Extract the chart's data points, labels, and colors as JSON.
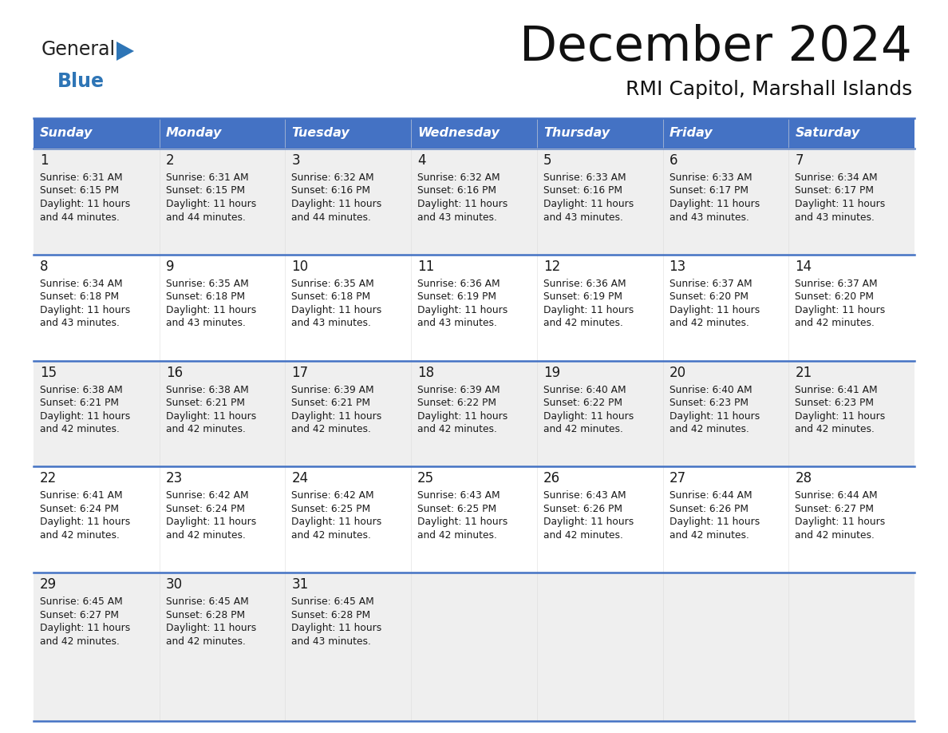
{
  "title": "December 2024",
  "subtitle": "RMI Capitol, Marshall Islands",
  "header_bg": "#4472C4",
  "header_fg": "#FFFFFF",
  "row_bg_odd": "#EFEFEF",
  "row_bg_even": "#FFFFFF",
  "divider_color": "#4472C4",
  "text_color": "#1a1a1a",
  "days_of_week": [
    "Sunday",
    "Monday",
    "Tuesday",
    "Wednesday",
    "Thursday",
    "Friday",
    "Saturday"
  ],
  "calendar_data": [
    [
      {
        "day": "1",
        "sunrise": "6:31 AM",
        "sunset": "6:15 PM",
        "dl1": "Daylight: 11 hours",
        "dl2": "and 44 minutes."
      },
      {
        "day": "2",
        "sunrise": "6:31 AM",
        "sunset": "6:15 PM",
        "dl1": "Daylight: 11 hours",
        "dl2": "and 44 minutes."
      },
      {
        "day": "3",
        "sunrise": "6:32 AM",
        "sunset": "6:16 PM",
        "dl1": "Daylight: 11 hours",
        "dl2": "and 44 minutes."
      },
      {
        "day": "4",
        "sunrise": "6:32 AM",
        "sunset": "6:16 PM",
        "dl1": "Daylight: 11 hours",
        "dl2": "and 43 minutes."
      },
      {
        "day": "5",
        "sunrise": "6:33 AM",
        "sunset": "6:16 PM",
        "dl1": "Daylight: 11 hours",
        "dl2": "and 43 minutes."
      },
      {
        "day": "6",
        "sunrise": "6:33 AM",
        "sunset": "6:17 PM",
        "dl1": "Daylight: 11 hours",
        "dl2": "and 43 minutes."
      },
      {
        "day": "7",
        "sunrise": "6:34 AM",
        "sunset": "6:17 PM",
        "dl1": "Daylight: 11 hours",
        "dl2": "and 43 minutes."
      }
    ],
    [
      {
        "day": "8",
        "sunrise": "6:34 AM",
        "sunset": "6:18 PM",
        "dl1": "Daylight: 11 hours",
        "dl2": "and 43 minutes."
      },
      {
        "day": "9",
        "sunrise": "6:35 AM",
        "sunset": "6:18 PM",
        "dl1": "Daylight: 11 hours",
        "dl2": "and 43 minutes."
      },
      {
        "day": "10",
        "sunrise": "6:35 AM",
        "sunset": "6:18 PM",
        "dl1": "Daylight: 11 hours",
        "dl2": "and 43 minutes."
      },
      {
        "day": "11",
        "sunrise": "6:36 AM",
        "sunset": "6:19 PM",
        "dl1": "Daylight: 11 hours",
        "dl2": "and 43 minutes."
      },
      {
        "day": "12",
        "sunrise": "6:36 AM",
        "sunset": "6:19 PM",
        "dl1": "Daylight: 11 hours",
        "dl2": "and 42 minutes."
      },
      {
        "day": "13",
        "sunrise": "6:37 AM",
        "sunset": "6:20 PM",
        "dl1": "Daylight: 11 hours",
        "dl2": "and 42 minutes."
      },
      {
        "day": "14",
        "sunrise": "6:37 AM",
        "sunset": "6:20 PM",
        "dl1": "Daylight: 11 hours",
        "dl2": "and 42 minutes."
      }
    ],
    [
      {
        "day": "15",
        "sunrise": "6:38 AM",
        "sunset": "6:21 PM",
        "dl1": "Daylight: 11 hours",
        "dl2": "and 42 minutes."
      },
      {
        "day": "16",
        "sunrise": "6:38 AM",
        "sunset": "6:21 PM",
        "dl1": "Daylight: 11 hours",
        "dl2": "and 42 minutes."
      },
      {
        "day": "17",
        "sunrise": "6:39 AM",
        "sunset": "6:21 PM",
        "dl1": "Daylight: 11 hours",
        "dl2": "and 42 minutes."
      },
      {
        "day": "18",
        "sunrise": "6:39 AM",
        "sunset": "6:22 PM",
        "dl1": "Daylight: 11 hours",
        "dl2": "and 42 minutes."
      },
      {
        "day": "19",
        "sunrise": "6:40 AM",
        "sunset": "6:22 PM",
        "dl1": "Daylight: 11 hours",
        "dl2": "and 42 minutes."
      },
      {
        "day": "20",
        "sunrise": "6:40 AM",
        "sunset": "6:23 PM",
        "dl1": "Daylight: 11 hours",
        "dl2": "and 42 minutes."
      },
      {
        "day": "21",
        "sunrise": "6:41 AM",
        "sunset": "6:23 PM",
        "dl1": "Daylight: 11 hours",
        "dl2": "and 42 minutes."
      }
    ],
    [
      {
        "day": "22",
        "sunrise": "6:41 AM",
        "sunset": "6:24 PM",
        "dl1": "Daylight: 11 hours",
        "dl2": "and 42 minutes."
      },
      {
        "day": "23",
        "sunrise": "6:42 AM",
        "sunset": "6:24 PM",
        "dl1": "Daylight: 11 hours",
        "dl2": "and 42 minutes."
      },
      {
        "day": "24",
        "sunrise": "6:42 AM",
        "sunset": "6:25 PM",
        "dl1": "Daylight: 11 hours",
        "dl2": "and 42 minutes."
      },
      {
        "day": "25",
        "sunrise": "6:43 AM",
        "sunset": "6:25 PM",
        "dl1": "Daylight: 11 hours",
        "dl2": "and 42 minutes."
      },
      {
        "day": "26",
        "sunrise": "6:43 AM",
        "sunset": "6:26 PM",
        "dl1": "Daylight: 11 hours",
        "dl2": "and 42 minutes."
      },
      {
        "day": "27",
        "sunrise": "6:44 AM",
        "sunset": "6:26 PM",
        "dl1": "Daylight: 11 hours",
        "dl2": "and 42 minutes."
      },
      {
        "day": "28",
        "sunrise": "6:44 AM",
        "sunset": "6:27 PM",
        "dl1": "Daylight: 11 hours",
        "dl2": "and 42 minutes."
      }
    ],
    [
      {
        "day": "29",
        "sunrise": "6:45 AM",
        "sunset": "6:27 PM",
        "dl1": "Daylight: 11 hours",
        "dl2": "and 42 minutes."
      },
      {
        "day": "30",
        "sunrise": "6:45 AM",
        "sunset": "6:28 PM",
        "dl1": "Daylight: 11 hours",
        "dl2": "and 42 minutes."
      },
      {
        "day": "31",
        "sunrise": "6:45 AM",
        "sunset": "6:28 PM",
        "dl1": "Daylight: 11 hours",
        "dl2": "and 43 minutes."
      },
      null,
      null,
      null,
      null
    ]
  ],
  "logo_general_color": "#222222",
  "logo_blue_color": "#2E75B6",
  "logo_triangle_color": "#2E75B6"
}
